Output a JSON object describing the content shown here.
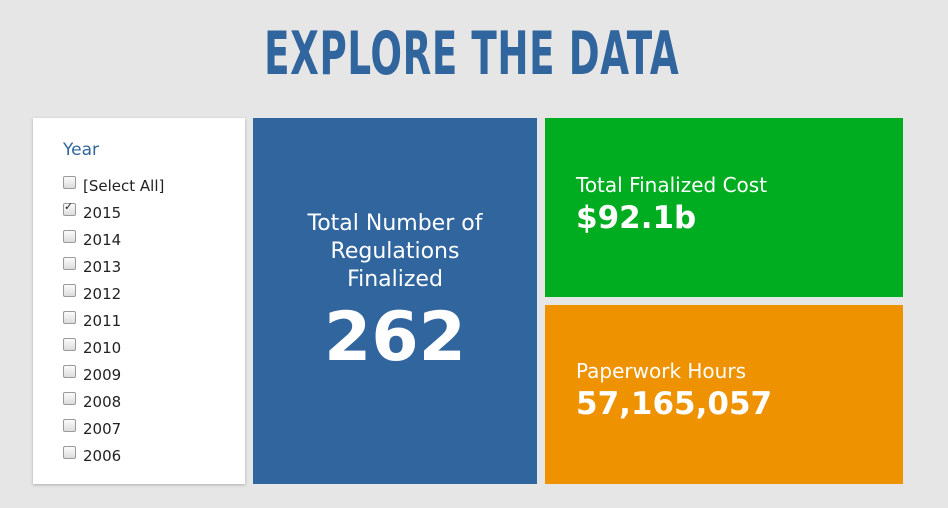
{
  "page": {
    "title": "EXPLORE THE DATA"
  },
  "filter": {
    "heading": "Year",
    "items": [
      {
        "label": "[Select All]",
        "checked": false
      },
      {
        "label": "2015",
        "checked": true
      },
      {
        "label": "2014",
        "checked": false
      },
      {
        "label": "2013",
        "checked": false
      },
      {
        "label": "2012",
        "checked": false
      },
      {
        "label": "2011",
        "checked": false
      },
      {
        "label": "2010",
        "checked": false
      },
      {
        "label": "2009",
        "checked": false
      },
      {
        "label": "2008",
        "checked": false
      },
      {
        "label": "2007",
        "checked": false
      },
      {
        "label": "2006",
        "checked": false
      }
    ]
  },
  "tiles": {
    "regulations": {
      "label": "Total Number of Regulations Finalized",
      "value": "262",
      "color": "#31659e"
    },
    "cost": {
      "label": "Total Finalized Cost",
      "value": "$92.1b",
      "color": "#01ad20"
    },
    "paperwork": {
      "label": "Paperwork Hours",
      "value": "57,165,057",
      "color": "#ee9200"
    }
  }
}
